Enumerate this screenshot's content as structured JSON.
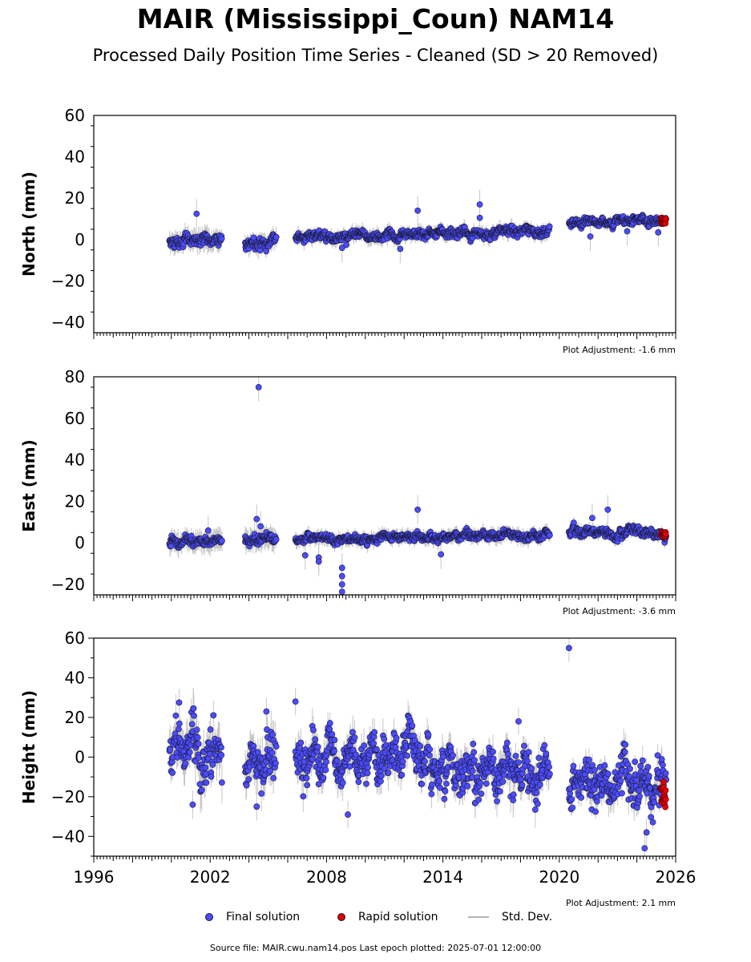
{
  "title": "MAIR (Mississippi_Coun) NAM14",
  "subtitle": "Processed Daily Position Time Series - Cleaned (SD > 20 Removed)",
  "source_note": "Source file: MAIR.cwu.nam14.pos  Last epoch plotted: 2025-07-01 12:00:00",
  "legend": {
    "final_label": "Final solution",
    "rapid_label": "Rapid solution",
    "std_label": "Std. Dev."
  },
  "colors": {
    "final": "#4c4cff",
    "rapid": "#e00000",
    "std": "#b4b4b4",
    "edge": "#1a1a33"
  },
  "chart_data": [
    {
      "type": "scatter",
      "component": "north",
      "ylabel": "North (mm)",
      "ylim": [
        -45,
        60
      ],
      "yticks": [
        -40,
        -20,
        0,
        20,
        40,
        60
      ],
      "xlim": [
        1996,
        2026
      ],
      "adjustment_note": "Plot Adjustment: -1.6 mm",
      "segments": [
        {
          "start": 1999.9,
          "end": 2002.6,
          "start_value": -1.5,
          "end_value": 0.5,
          "scatter": 2.0,
          "std": 4.5
        },
        {
          "start": 2003.8,
          "end": 2005.4,
          "start_value": -1.5,
          "end_value": 0.0,
          "scatter": 1.8,
          "std": 4.0
        },
        {
          "start": 2006.4,
          "end": 2019.5,
          "start_value": 0.5,
          "end_value": 4.5,
          "scatter": 1.5,
          "std": 3.0
        },
        {
          "start": 2020.5,
          "end": 2025.5,
          "start_value": 8.0,
          "end_value": 9.5,
          "scatter": 1.3,
          "std": 2.0
        }
      ],
      "rapid": {
        "start": 2025.25,
        "end": 2025.5,
        "value": 9.0,
        "scatter": 0.8
      },
      "outliers": [
        [
          2001.3,
          12.5
        ],
        [
          2012.7,
          14.0
        ],
        [
          2015.9,
          17.0
        ],
        [
          2015.9,
          10.5
        ],
        [
          2011.8,
          -4.5
        ],
        [
          2008.8,
          -4.0
        ],
        [
          2025.1,
          3.5
        ],
        [
          2021.6,
          1.5
        ],
        [
          2023.5,
          4.0
        ]
      ]
    },
    {
      "type": "scatter",
      "component": "east",
      "ylabel": "East (mm)",
      "ylim": [
        -25,
        80
      ],
      "yticks": [
        -20,
        0,
        20,
        40,
        60,
        80
      ],
      "xlim": [
        1996,
        2026
      ],
      "adjustment_note": "Plot Adjustment: -3.6 mm",
      "segments": [
        {
          "start": 1999.9,
          "end": 2002.6,
          "start_value": 0.0,
          "end_value": 0.5,
          "scatter": 1.6,
          "std": 4.5
        },
        {
          "start": 2003.8,
          "end": 2005.4,
          "start_value": 1.5,
          "end_value": 2.5,
          "scatter": 1.5,
          "std": 4.5
        },
        {
          "start": 2006.4,
          "end": 2019.5,
          "start_value": 1.5,
          "end_value": 4.5,
          "scatter": 1.3,
          "std": 3.0
        },
        {
          "start": 2020.5,
          "end": 2025.5,
          "start_value": 5.0,
          "end_value": 4.0,
          "scatter": 1.5,
          "std": 2.5
        }
      ],
      "rapid": {
        "start": 2025.25,
        "end": 2025.5,
        "value": 4.0,
        "scatter": 0.6
      },
      "outliers": [
        [
          2004.5,
          75.0
        ],
        [
          2004.4,
          11.5
        ],
        [
          2004.6,
          8.0
        ],
        [
          2012.7,
          16.0
        ],
        [
          2022.5,
          16.0
        ],
        [
          2021.7,
          12.0
        ],
        [
          2001.9,
          6.0
        ],
        [
          2008.8,
          -12.0
        ],
        [
          2008.8,
          -16.0
        ],
        [
          2008.8,
          -20.0
        ],
        [
          2008.8,
          -23.5
        ],
        [
          2007.6,
          -7.0
        ],
        [
          2007.6,
          -9.0
        ],
        [
          2013.9,
          -5.5
        ],
        [
          2006.9,
          -6.0
        ]
      ]
    },
    {
      "type": "scatter",
      "component": "height",
      "ylabel": "Height (mm)",
      "ylim": [
        -50,
        60
      ],
      "yticks": [
        -40,
        -20,
        0,
        20,
        40,
        60
      ],
      "xlim": [
        1996,
        2026
      ],
      "xticks": [
        1996,
        2002,
        2008,
        2014,
        2020,
        2026
      ],
      "adjustment_note": "Plot Adjustment: 2.1 mm",
      "segments": [
        {
          "start": 1999.9,
          "end": 2002.6,
          "start_value": 5.0,
          "end_value": -2.0,
          "scatter": 8.0,
          "std": 9.0
        },
        {
          "start": 2003.8,
          "end": 2005.4,
          "start_value": 0.0,
          "end_value": -2.0,
          "scatter": 7.5,
          "std": 9.0
        },
        {
          "start": 2006.4,
          "end": 2019.5,
          "start_value": 2.0,
          "end_value": -8.0,
          "scatter": 7.5,
          "std": 7.0
        },
        {
          "start": 2020.5,
          "end": 2025.5,
          "start_value": -17.0,
          "end_value": -12.0,
          "scatter": 7.5,
          "std": 6.0
        }
      ],
      "rapid": {
        "start": 2025.25,
        "end": 2025.5,
        "value": -19.0,
        "scatter": 4.5
      },
      "outliers": [
        [
          2020.5,
          55.0
        ],
        [
          2024.4,
          -46.0
        ],
        [
          2024.5,
          -38.0
        ],
        [
          2006.4,
          28.0
        ],
        [
          2004.9,
          23.0
        ],
        [
          2000.4,
          27.5
        ],
        [
          2017.9,
          18.0
        ],
        [
          2004.4,
          -25.0
        ],
        [
          2001.1,
          -24.0
        ],
        [
          2009.1,
          -29.0
        ]
      ]
    }
  ]
}
